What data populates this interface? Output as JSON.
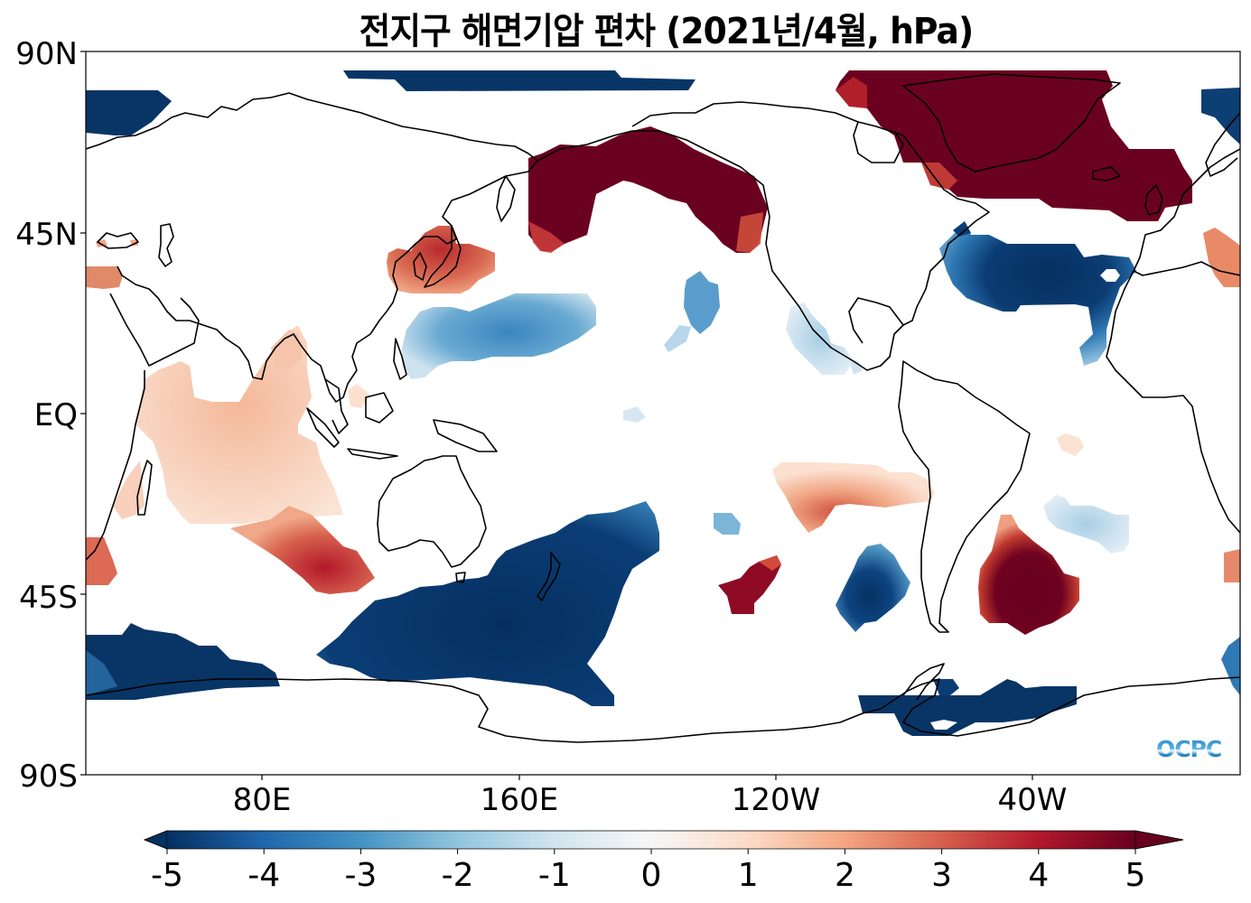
{
  "title": "전지구 해면기압 편차 (2021년/4월, hPa)",
  "map": {
    "projection": "PlateCarree, central longitude 205E",
    "variable": "Sea level pressure anomaly",
    "units": "hPa",
    "y_axis_labels": [
      "90N",
      "45N",
      "EQ",
      "45S",
      "90S"
    ],
    "x_axis_labels": [
      "80E",
      "160E",
      "120W",
      "40W"
    ],
    "logo": "OCPC"
  },
  "colorbar": {
    "colormap": "RdBu_r",
    "min": -5,
    "max": 5,
    "extend": "both",
    "tick_labels": [
      "-5",
      "-4",
      "-3",
      "-2",
      "-1",
      "0",
      "1",
      "2",
      "3",
      "4",
      "5"
    ],
    "colors": {
      "neg5": "#053061",
      "neg4": "#2166ac",
      "neg3": "#4393c3",
      "neg2": "#92c5de",
      "neg1": "#d1e5f0",
      "zero": "#f7f7f7",
      "pos1": "#fddbc7",
      "pos2": "#f4a582",
      "pos3": "#d6604d",
      "pos4": "#b2182b",
      "pos5": "#67001f"
    }
  },
  "anomaly_regions": [
    {
      "name": "Arctic north of Siberia",
      "sign": "negative",
      "value": -5
    },
    {
      "name": "Barents/Scandinavia Arctic",
      "sign": "negative",
      "value": -5
    },
    {
      "name": "Alaska / Bering Sea",
      "sign": "positive",
      "value": 5
    },
    {
      "name": "Greenland / North Atlantic / British Isles",
      "sign": "positive",
      "value": 5
    },
    {
      "name": "Japan / Korea",
      "sign": "positive",
      "value": 3
    },
    {
      "name": "Northwest Pacific subtropics",
      "sign": "negative",
      "value": -2.5
    },
    {
      "name": "Central Atlantic (Azores)",
      "sign": "negative",
      "value": -5
    },
    {
      "name": "Eastern subtropical Pacific",
      "sign": "negative",
      "value": -1.5
    },
    {
      "name": "Indian Ocean",
      "sign": "positive",
      "value": 1.5
    },
    {
      "name": "Southern Indian Ocean",
      "sign": "positive",
      "value": 4
    },
    {
      "name": "Tasman Sea / South of Australia",
      "sign": "negative",
      "value": -5
    },
    {
      "name": "Southern Ocean (Indian sector)",
      "sign": "negative",
      "value": -5
    },
    {
      "name": "South Pacific subtropics",
      "sign": "positive",
      "value": 2
    },
    {
      "name": "South Pacific (mid-lat)",
      "sign": "positive",
      "value": 5
    },
    {
      "name": "Southeast Pacific",
      "sign": "negative",
      "value": -5
    },
    {
      "name": "South Atlantic (Argentine Basin)",
      "sign": "positive",
      "value": 5
    },
    {
      "name": "South Atlantic subtropics",
      "sign": "negative",
      "value": -2
    },
    {
      "name": "Weddell Sea / Antarctic Peninsula",
      "sign": "negative",
      "value": -5
    }
  ]
}
